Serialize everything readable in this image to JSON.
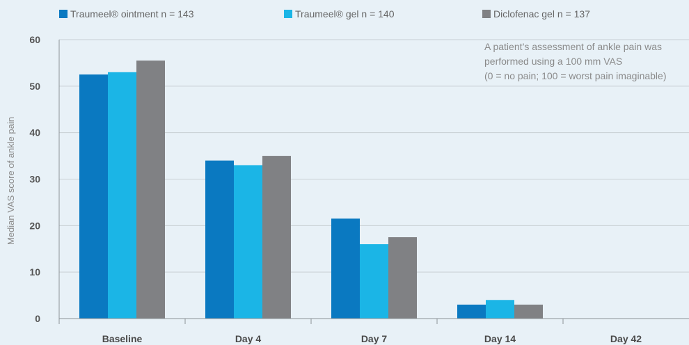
{
  "chart_data": {
    "type": "bar",
    "categories": [
      "Baseline",
      "Day 4",
      "Day 7",
      "Day 14",
      "Day 42"
    ],
    "series": [
      {
        "name": "Traumeel® ointment n = 143",
        "color": "#0a79c1",
        "values": [
          52.5,
          34,
          21.5,
          3,
          0
        ]
      },
      {
        "name": "Traumeel® gel n = 140",
        "color": "#1bb5e6",
        "values": [
          53,
          33,
          16,
          4,
          0
        ]
      },
      {
        "name": "Diclofenac gel n = 137",
        "color": "#808184",
        "values": [
          55.5,
          35,
          17.5,
          3,
          0
        ]
      }
    ],
    "ylabel": "Median VAS score of ankle pain",
    "xlabel": "",
    "ylim": [
      0,
      60
    ],
    "yticks": [
      0,
      10,
      20,
      30,
      40,
      50,
      60
    ],
    "grid": true,
    "legend": "top",
    "annotation": [
      "A patient’s assessment of ankle pain was",
      "performed using a 100 mm VAS",
      "(0 = no pain; 100 = worst pain imaginable)"
    ],
    "colors": {
      "background": "#e8f1f7",
      "grid": "#c8cfd4",
      "axis": "#8c9297",
      "text": "#555555",
      "label": "#555555"
    }
  }
}
